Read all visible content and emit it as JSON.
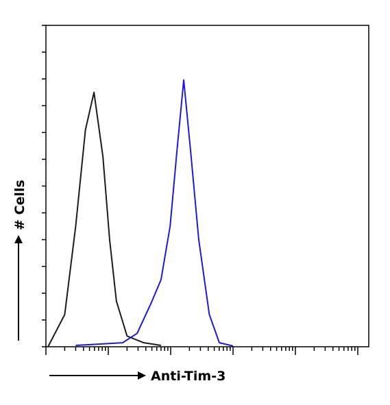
{
  "chart_data": {
    "type": "line",
    "x_label": "Anti-Tim-3",
    "y_label": "# Cells",
    "log_x": true,
    "xlim": [
      1,
      150000
    ],
    "ylim": [
      0,
      120
    ],
    "yticks": [
      0,
      10,
      20,
      30,
      40,
      50,
      60,
      70,
      80,
      90,
      100,
      110,
      120
    ],
    "series": [
      {
        "color": "#1a1a1a",
        "x": [
          1.08,
          2.0,
          3.0,
          4.3,
          5.9,
          8.2,
          10.5,
          13.5,
          20,
          37,
          70
        ],
        "values": [
          0,
          12,
          45,
          81,
          95,
          71,
          40,
          17,
          4,
          1.5,
          0.5
        ]
      },
      {
        "color": "#1a1adc",
        "x": [
          3.0,
          17,
          29,
          48,
          70,
          98,
          126,
          162,
          209,
          282,
          417,
          603,
          1000
        ],
        "values": [
          0.5,
          1.5,
          5,
          16,
          25,
          45,
          73,
          99.6,
          73,
          40,
          12,
          1.5,
          0.3
        ]
      }
    ]
  }
}
